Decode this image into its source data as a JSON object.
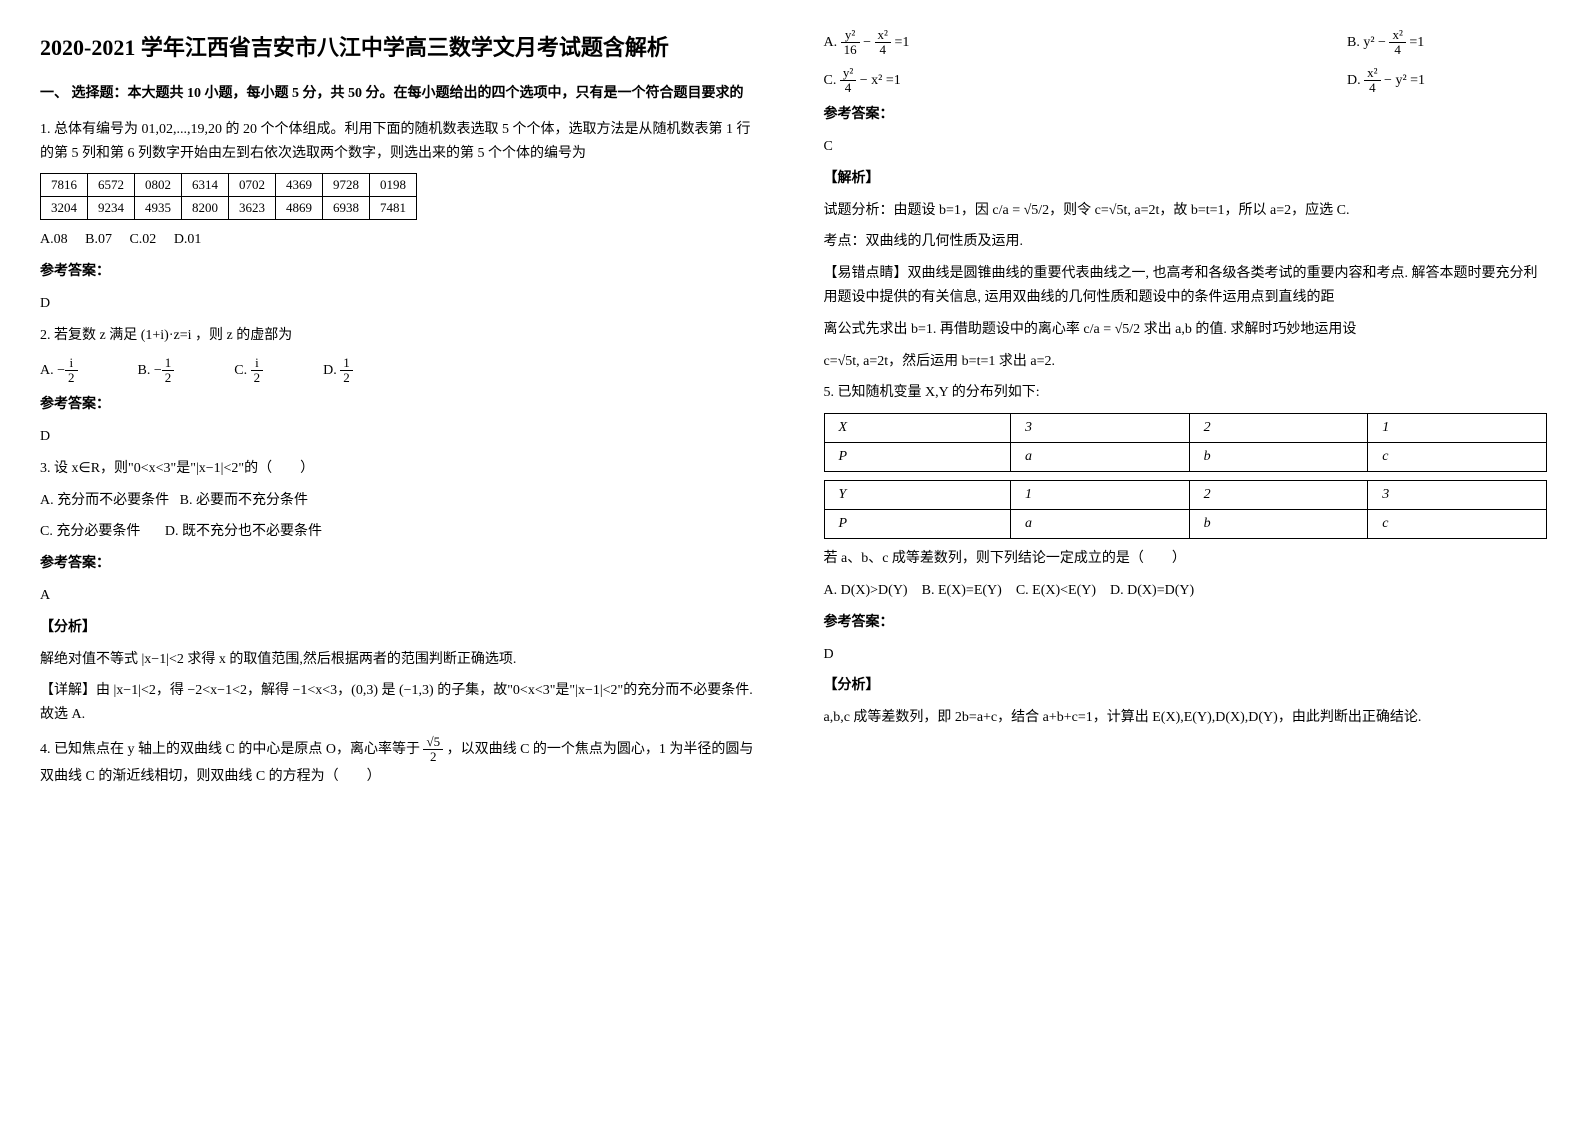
{
  "title": "2020-2021 学年江西省吉安市八江中学高三数学文月考试题含解析",
  "section1": "一、 选择题：本大题共 10 小题，每小题 5 分，共 50 分。在每小题给出的四个选项中，只有是一个符合题目要求的",
  "q1": {
    "stem": "1. 总体有编号为 01,02,...,19,20 的 20 个个体组成。利用下面的随机数表选取 5 个个体，选取方法是从随机数表第 1 行的第 5 列和第 6 列数字开始由左到右依次选取两个数字，则选出来的第 5 个个体的编号为",
    "rows": [
      [
        "7816",
        "6572",
        "0802",
        "6314",
        "0702",
        "4369",
        "9728",
        "0198"
      ],
      [
        "3204",
        "9234",
        "4935",
        "8200",
        "3623",
        "4869",
        "6938",
        "7481"
      ]
    ],
    "opts": [
      "A.08",
      "B.07",
      "C.02",
      "D.01"
    ],
    "ansLabel": "参考答案：",
    "ans": "D"
  },
  "q2": {
    "stem_a": "2. 若复数 z 满足 ",
    "stem_b": "(1+i)·z=i",
    "stem_c": "，则 z 的虚部为",
    "opts": {
      "A": "A.",
      "B": "B.",
      "C": "C.",
      "D": "D."
    },
    "fracs": {
      "A_num": "i",
      "A_den": "2",
      "A_neg": "−",
      "B_num": "1",
      "B_den": "2",
      "B_neg": "−",
      "C_num": "i",
      "C_den": "2",
      "D_num": "1",
      "D_den": "2"
    },
    "ansLabel": "参考答案：",
    "ans": "D"
  },
  "q3": {
    "stem": "3. 设 x∈R，则\"0<x<3\"是\"|x−1|<2\"的（　　）",
    "optA": "A. 充分而不必要条件",
    "optB": "B. 必要而不充分条件",
    "optC": "C. 充分必要条件",
    "optD": "D. 既不充分也不必要条件",
    "ansLabel": "参考答案：",
    "ans": "A",
    "anaLabel": "【分析】",
    "ana1": "解绝对值不等式 |x−1|<2 求得 x 的取值范围,然后根据两者的范围判断正确选项.",
    "ana2": "【详解】由 |x−1|<2，得 −2<x−1<2，解得 −1<x<3，(0,3) 是 (−1,3) 的子集，故\"0<x<3\"是\"|x−1|<2\"的充分而不必要条件. 故选 A."
  },
  "q4": {
    "stem_a": "4. 已知焦点在 y 轴上的双曲线 C 的中心是原点 O，离心率等于 ",
    "stem_b": "，以双曲线 C 的一个焦点为圆心，1 为半径的圆与双曲线 C 的渐近线相切，则双曲线 C 的方程为（　　）",
    "sqrt5": "√5",
    "half": "2",
    "opts": {
      "A": "A.",
      "B": "B.",
      "C": "C.",
      "D": "D."
    },
    "eqA": {
      "t1": "y²",
      "d1": "16",
      "t2": "x²",
      "d2": "4",
      "rhs": "=1"
    },
    "eqB": {
      "t1": "y²",
      "t2": "x²",
      "d2": "4",
      "rhs": "=1"
    },
    "eqC": {
      "t1": "y²",
      "d1": "4",
      "t2": "x²",
      "rhs": "=1"
    },
    "eqD": {
      "t1": "x²",
      "d1": "4",
      "t2": "y²",
      "rhs": "=1"
    },
    "ansLabel": "参考答案：",
    "ans": "C",
    "anaLabel": "【解析】",
    "ana1": "试题分析：由题设 b=1，因 c/a = √5/2，则令 c=√5t, a=2t，故 b=t=1，所以 a=2，应选 C.",
    "kplabel": "考点：双曲线的几何性质及运用.",
    "tip1": "【易错点睛】双曲线是圆锥曲线的重要代表曲线之一, 也高考和各级各类考试的重要内容和考点. 解答本题时要充分利用题设中提供的有关信息, 运用双曲线的几何性质和题设中的条件运用点到直线的距",
    "tip2": "离公式先求出 b=1. 再借助题设中的离心率 c/a = √5/2 求出 a,b 的值. 求解时巧妙地运用设",
    "tip3": "c=√5t, a=2t，然后运用 b=t=1 求出 a=2."
  },
  "q5": {
    "stem": "5. 已知随机变量 X,Y 的分布列如下:",
    "t1": {
      "r1": [
        "X",
        "3",
        "2",
        "1"
      ],
      "r2": [
        "P",
        "a",
        "b",
        "c"
      ]
    },
    "t2": {
      "r1": [
        "Y",
        "1",
        "2",
        "3"
      ],
      "r2": [
        "P",
        "a",
        "b",
        "c"
      ]
    },
    "cond": "若 a、b、c 成等差数列，则下列结论一定成立的是（　　）",
    "opts": {
      "A": "A. D(X)>D(Y)",
      "B": "B. E(X)=E(Y)",
      "C": "C. E(X)<E(Y)",
      "D": "D. D(X)=D(Y)"
    },
    "ansLabel": "参考答案：",
    "ans": "D",
    "anaLabel": "【分析】",
    "ana": "a,b,c 成等差数列，即 2b=a+c，结合 a+b+c=1，计算出 E(X),E(Y),D(X),D(Y)，由此判断出正确结论."
  }
}
